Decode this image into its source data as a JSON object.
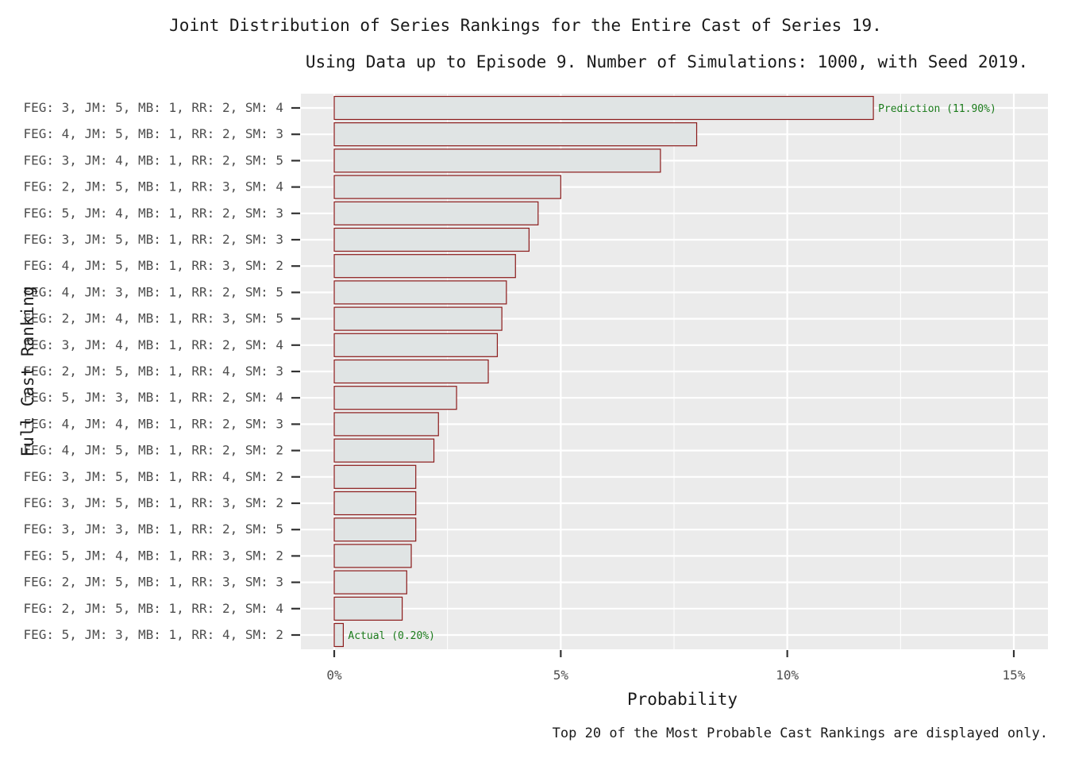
{
  "chart_data": {
    "type": "bar",
    "orientation": "horizontal",
    "title": "Joint Distribution of Series Rankings for the Entire Cast of Series 19.",
    "subtitle": "Using Data up to Episode 9. Number of Simulations: 1000, with Seed 2019.",
    "caption": "Top 20 of the Most Probable Cast Rankings are displayed only.",
    "xlabel": "Probability",
    "ylabel": "Full Cast Ranking",
    "xlim": [
      0,
      15
    ],
    "x_ticks": [
      "0%",
      "5%",
      "10%",
      "15%"
    ],
    "x_tick_values": [
      0,
      5,
      10,
      15
    ],
    "grid": true,
    "categories": [
      "FEG: 3, JM: 5, MB: 1, RR: 2, SM: 4",
      "FEG: 4, JM: 5, MB: 1, RR: 2, SM: 3",
      "FEG: 3, JM: 4, MB: 1, RR: 2, SM: 5",
      "FEG: 2, JM: 5, MB: 1, RR: 3, SM: 4",
      "FEG: 5, JM: 4, MB: 1, RR: 2, SM: 3",
      "FEG: 3, JM: 5, MB: 1, RR: 2, SM: 3",
      "FEG: 4, JM: 5, MB: 1, RR: 3, SM: 2",
      "FEG: 4, JM: 3, MB: 1, RR: 2, SM: 5",
      "FEG: 2, JM: 4, MB: 1, RR: 3, SM: 5",
      "FEG: 3, JM: 4, MB: 1, RR: 2, SM: 4",
      "FEG: 2, JM: 5, MB: 1, RR: 4, SM: 3",
      "FEG: 5, JM: 3, MB: 1, RR: 2, SM: 4",
      "FEG: 4, JM: 4, MB: 1, RR: 2, SM: 3",
      "FEG: 4, JM: 5, MB: 1, RR: 2, SM: 2",
      "FEG: 3, JM: 5, MB: 1, RR: 4, SM: 2",
      "FEG: 3, JM: 5, MB: 1, RR: 3, SM: 2",
      "FEG: 3, JM: 3, MB: 1, RR: 2, SM: 5",
      "FEG: 5, JM: 4, MB: 1, RR: 3, SM: 2",
      "FEG: 2, JM: 5, MB: 1, RR: 3, SM: 3",
      "FEG: 2, JM: 5, MB: 1, RR: 2, SM: 4",
      "FEG: 5, JM: 3, MB: 1, RR: 4, SM: 2"
    ],
    "values": [
      11.9,
      8.0,
      7.2,
      5.0,
      4.5,
      4.3,
      4.0,
      3.8,
      3.7,
      3.6,
      3.4,
      2.7,
      2.3,
      2.2,
      1.8,
      1.8,
      1.8,
      1.7,
      1.6,
      1.5,
      0.2
    ],
    "annotations": [
      {
        "category_index": 0,
        "text": "Prediction (11.90%)"
      },
      {
        "category_index": 20,
        "text": "Actual (0.20%)"
      }
    ],
    "colors": {
      "bar_fill": "#e0e4e4",
      "bar_stroke": "#8b1a1a",
      "panel": "#ebebeb",
      "grid": "#ffffff",
      "annotation": "#1a7a1a"
    }
  }
}
